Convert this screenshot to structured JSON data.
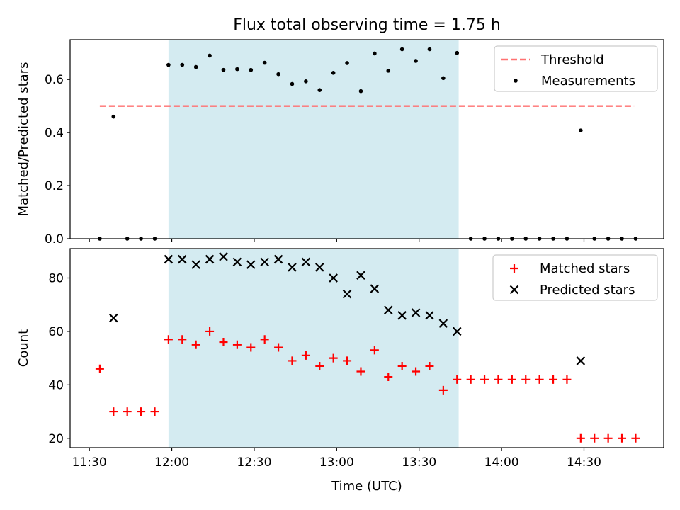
{
  "title": "Flux total observing time = 1.75 h",
  "colors": {
    "shade": "#d4ebf1",
    "threshold": "#ff7272",
    "matched": "#ff0000",
    "predicted": "#000000",
    "measurement": "#000000"
  },
  "chart_data": [
    {
      "type": "scatter",
      "panel": "top",
      "xlabel": "",
      "ylabel": "Matched/Predicted stars",
      "xlim_minutes_from_11_00": [
        23.0,
        239.0
      ],
      "ylim": [
        0.0,
        0.75
      ],
      "yticks": [
        0.0,
        0.2,
        0.4,
        0.6
      ],
      "ytick_labels": [
        "0.0",
        "0.2",
        "0.4",
        "0.6"
      ],
      "shaded_span_x": [
        "11:58.8",
        "13:44.4"
      ],
      "legend": {
        "position": "upper right",
        "entries": [
          "Threshold",
          "Measurements"
        ]
      },
      "series": [
        {
          "name": "Threshold",
          "kind": "dashed-line",
          "x": [
            "11:33.8",
            "14:48.2"
          ],
          "y": [
            0.5,
            0.5
          ]
        },
        {
          "name": "Measurements",
          "kind": "points",
          "x": [
            "11:33.8",
            "11:38.8",
            "11:43.8",
            "11:48.8",
            "11:53.8",
            "11:58.8",
            "12:03.8",
            "12:08.8",
            "12:13.8",
            "12:18.8",
            "12:23.8",
            "12:28.8",
            "12:33.8",
            "12:38.8",
            "12:43.8",
            "12:48.8",
            "12:53.8",
            "12:58.8",
            "13:03.8",
            "13:08.8",
            "13:13.8",
            "13:18.8",
            "13:23.8",
            "13:28.8",
            "13:33.8",
            "13:38.8",
            "13:43.8",
            "13:48.8",
            "13:53.8",
            "13:58.8",
            "14:03.8",
            "14:08.8",
            "14:13.8",
            "14:18.8",
            "14:23.8",
            "14:28.8",
            "14:33.8",
            "14:38.8",
            "14:43.8",
            "14:48.8"
          ],
          "y": [
            0.0,
            0.46,
            0.0,
            0.0,
            0.0,
            0.655,
            0.655,
            0.647,
            0.69,
            0.636,
            0.639,
            0.636,
            0.663,
            0.62,
            0.583,
            0.593,
            0.56,
            0.625,
            0.662,
            0.556,
            0.698,
            0.633,
            0.714,
            0.67,
            0.714,
            0.605,
            0.7,
            0.0,
            0.0,
            0.0,
            0.0,
            0.0,
            0.0,
            0.0,
            0.0,
            0.408,
            0.0,
            0.0,
            0.0,
            0.0
          ]
        }
      ]
    },
    {
      "type": "scatter",
      "panel": "bottom",
      "xlabel": "Time (UTC)",
      "ylabel": "Count",
      "xlim_minutes_from_11_00": [
        23.0,
        239.0
      ],
      "ylim": [
        16.5,
        91.0
      ],
      "yticks": [
        20,
        40,
        60,
        80
      ],
      "ytick_labels": [
        "20",
        "40",
        "60",
        "80"
      ],
      "xtick_labels": [
        "11:30",
        "12:00",
        "12:30",
        "13:00",
        "13:30",
        "14:00",
        "14:30"
      ],
      "shaded_span_x": [
        "11:58.8",
        "13:44.4"
      ],
      "legend": {
        "position": "upper right",
        "entries": [
          "Matched stars",
          "Predicted stars"
        ]
      },
      "series": [
        {
          "name": "Matched stars",
          "marker": "+",
          "x": [
            "11:33.8",
            "11:38.8",
            "11:43.8",
            "11:48.8",
            "11:53.8",
            "11:58.8",
            "12:03.8",
            "12:08.8",
            "12:13.8",
            "12:18.8",
            "12:23.8",
            "12:28.8",
            "12:33.8",
            "12:38.8",
            "12:43.8",
            "12:48.8",
            "12:53.8",
            "12:58.8",
            "13:03.8",
            "13:08.8",
            "13:13.8",
            "13:18.8",
            "13:23.8",
            "13:28.8",
            "13:33.8",
            "13:38.8",
            "13:43.8",
            "13:48.8",
            "13:53.8",
            "13:58.8",
            "14:03.8",
            "14:08.8",
            "14:13.8",
            "14:18.8",
            "14:23.8",
            "14:28.8",
            "14:33.8",
            "14:38.8",
            "14:43.8",
            "14:48.8"
          ],
          "y": [
            46,
            30,
            30,
            30,
            30,
            57,
            57,
            55,
            60,
            56,
            55,
            54,
            57,
            54,
            49,
            51,
            47,
            50,
            49,
            45,
            53,
            43,
            47,
            45,
            47,
            38,
            42,
            42,
            42,
            42,
            42,
            42,
            42,
            42,
            42,
            20,
            20,
            20,
            20,
            20
          ]
        },
        {
          "name": "Predicted stars",
          "marker": "x",
          "x": [
            "11:38.8",
            "11:58.8",
            "12:03.8",
            "12:08.8",
            "12:13.8",
            "12:18.8",
            "12:23.8",
            "12:28.8",
            "12:33.8",
            "12:38.8",
            "12:43.8",
            "12:48.8",
            "12:53.8",
            "12:58.8",
            "13:03.8",
            "13:08.8",
            "13:13.8",
            "13:18.8",
            "13:23.8",
            "13:28.8",
            "13:33.8",
            "13:38.8",
            "13:43.8",
            "14:28.8"
          ],
          "y": [
            65,
            87,
            87,
            85,
            87,
            88,
            86,
            85,
            86,
            87,
            84,
            86,
            84,
            80,
            74,
            81,
            76,
            68,
            66,
            67,
            66,
            63,
            60,
            49
          ]
        }
      ]
    }
  ]
}
